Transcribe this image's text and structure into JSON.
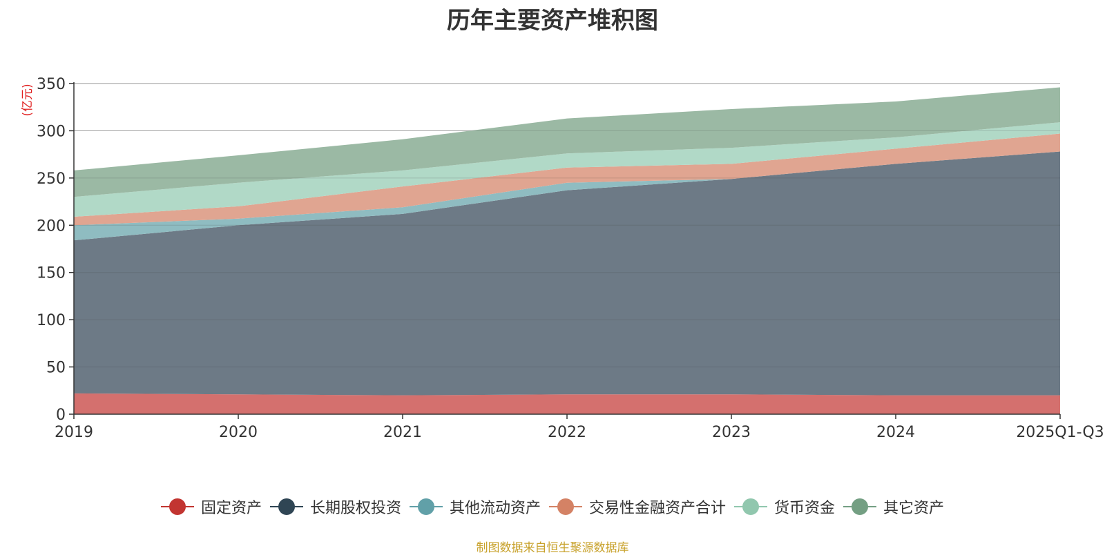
{
  "chart_data": {
    "type": "area",
    "stacked": true,
    "title": "历年主要资产堆积图",
    "ylabel": "(亿元)",
    "xlabel": "",
    "ylim": [
      0,
      350
    ],
    "yticks": [
      0,
      50,
      100,
      150,
      200,
      250,
      300,
      350
    ],
    "grid": true,
    "legend_position": "bottom",
    "categories": [
      "2019",
      "2020",
      "2021",
      "2022",
      "2023",
      "2024",
      "2025Q1-Q3"
    ],
    "series": [
      {
        "name": "固定资产",
        "color": "#c23531",
        "fill": "#d4706e",
        "values": [
          22,
          21,
          20,
          21,
          21,
          20,
          20
        ]
      },
      {
        "name": "长期股权投资",
        "color": "#2f4554",
        "fill": "#6d7a86",
        "values": [
          162,
          179,
          192,
          216,
          228,
          245,
          258
        ]
      },
      {
        "name": "其他流动资产",
        "color": "#61a0a8",
        "fill": "#8fbcc1",
        "values": [
          16,
          7,
          7,
          8,
          0,
          0,
          0
        ]
      },
      {
        "name": "交易性金融资产合计",
        "color": "#d48265",
        "fill": "#e0a591",
        "values": [
          9,
          13,
          22,
          16,
          16,
          16,
          19
        ]
      },
      {
        "name": "货币资金",
        "color": "#91c7ae",
        "fill": "#b1d9c7",
        "values": [
          21,
          25,
          17,
          15,
          17,
          12,
          12
        ]
      },
      {
        "name": "其它资产",
        "color": "#749f83",
        "fill": "#9bb9a4",
        "values": [
          28,
          29,
          33,
          37,
          41,
          38,
          37
        ]
      }
    ]
  },
  "source_note": "制图数据来自恒生聚源数据库"
}
